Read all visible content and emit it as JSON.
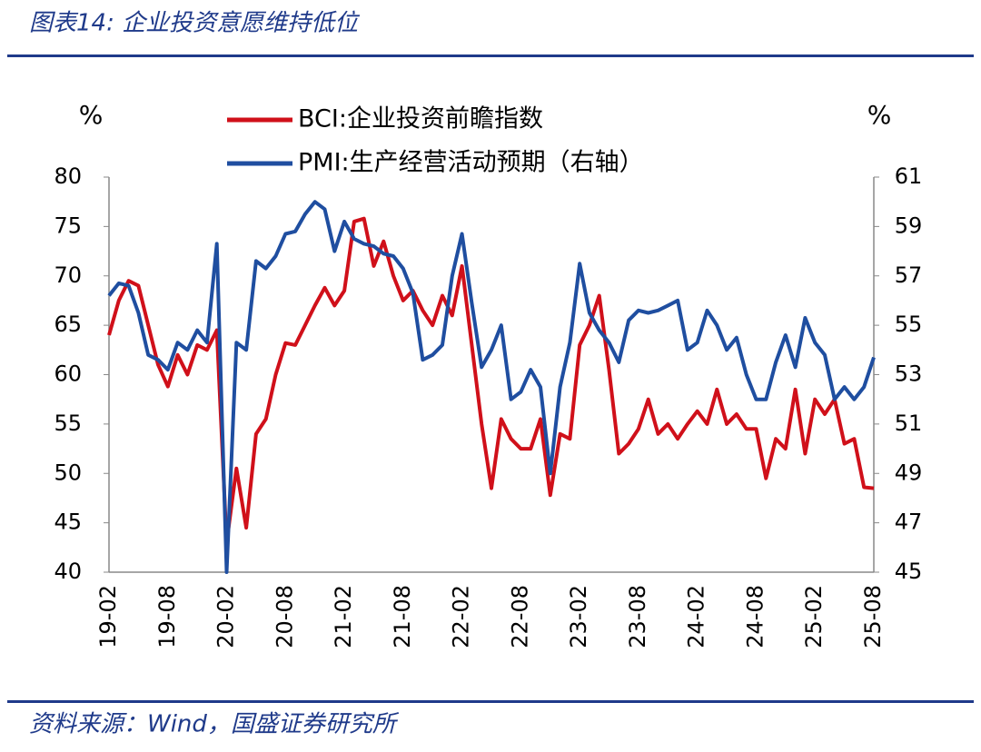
{
  "chart_data": {
    "type": "line",
    "title": "图表14:  企业投资意愿维持低位",
    "source": "资料来源：Wind，国盛证券研究所",
    "y_unit": "%",
    "y2_unit": "%",
    "categories": [
      "19-02",
      null,
      null,
      null,
      null,
      null,
      "19-08",
      null,
      null,
      null,
      null,
      null,
      "20-02",
      null,
      null,
      null,
      null,
      null,
      "20-08",
      null,
      null,
      null,
      null,
      null,
      "21-02",
      null,
      null,
      null,
      null,
      null,
      "21-08",
      null,
      null,
      null,
      null,
      null,
      "22-02",
      null,
      null,
      null,
      null,
      null,
      "22-08",
      null,
      null,
      null,
      null,
      null,
      "23-02",
      null,
      null,
      null,
      null,
      null,
      "23-08",
      null,
      null,
      null,
      null,
      null,
      "24-02",
      null,
      null,
      null,
      null,
      null,
      "24-08",
      null,
      null,
      null,
      null,
      null,
      "25-02",
      null,
      null,
      null,
      null,
      null,
      "25-08"
    ],
    "series": [
      {
        "name": "BCI:企业投资前瞻指数",
        "color": "#d0101a",
        "values": [
          64,
          67.5,
          69.5,
          69,
          65,
          61,
          58.8,
          62,
          60,
          63,
          62.5,
          64.5,
          43,
          50.5,
          44.5,
          54,
          55.5,
          60,
          63.2,
          63,
          65,
          67,
          68.8,
          67,
          68.5,
          75.5,
          75.8,
          71,
          73.5,
          70,
          67.5,
          68.5,
          66.5,
          65,
          68,
          66,
          71,
          63,
          55,
          48.5,
          55.5,
          53.5,
          52.5,
          52.5,
          55.5,
          47.8,
          54,
          53.5,
          63,
          65,
          68,
          60.5,
          52,
          53,
          54.5,
          57.5,
          54,
          55,
          53.5,
          55,
          56.3,
          55,
          58.5,
          55,
          56,
          54.5,
          54.5,
          49.5,
          53.5,
          52.5,
          58.5,
          52,
          57.5,
          56,
          57.5,
          53,
          53.5,
          48.6,
          48.5
        ]
      },
      {
        "name": "PMI:生产经营活动预期（右轴）",
        "color": "#1f4ea0",
        "axis": "y2",
        "values": [
          56.2,
          56.7,
          56.6,
          55.5,
          53.8,
          53.6,
          53.2,
          54.3,
          54,
          54.8,
          54.3,
          58.3,
          45,
          54.3,
          54,
          57.6,
          57.3,
          57.8,
          58.7,
          58.8,
          59.5,
          60,
          59.7,
          58,
          59.2,
          58.5,
          58.3,
          58.2,
          57.9,
          57.8,
          57.3,
          56.3,
          53.6,
          53.8,
          54.2,
          57,
          58.7,
          55.9,
          53.3,
          54,
          55,
          52,
          52.3,
          53.2,
          52.5,
          49,
          52.5,
          54.3,
          57.5,
          55.5,
          54.8,
          54.3,
          53.5,
          55.2,
          55.6,
          55.5,
          55.6,
          55.8,
          56,
          54,
          54.3,
          55.6,
          55,
          54,
          54.5,
          53,
          52,
          52,
          53.5,
          54.6,
          53.3,
          55.3,
          54.3,
          53.8,
          52,
          52.5,
          52,
          52.5,
          53.7
        ]
      }
    ],
    "ylim": [
      40,
      80
    ],
    "yticks": [
      40,
      45,
      50,
      55,
      60,
      65,
      70,
      75,
      80
    ],
    "y2lim": [
      45,
      61
    ],
    "y2ticks": [
      45,
      47,
      49,
      51,
      53,
      55,
      57,
      59,
      61
    ]
  }
}
